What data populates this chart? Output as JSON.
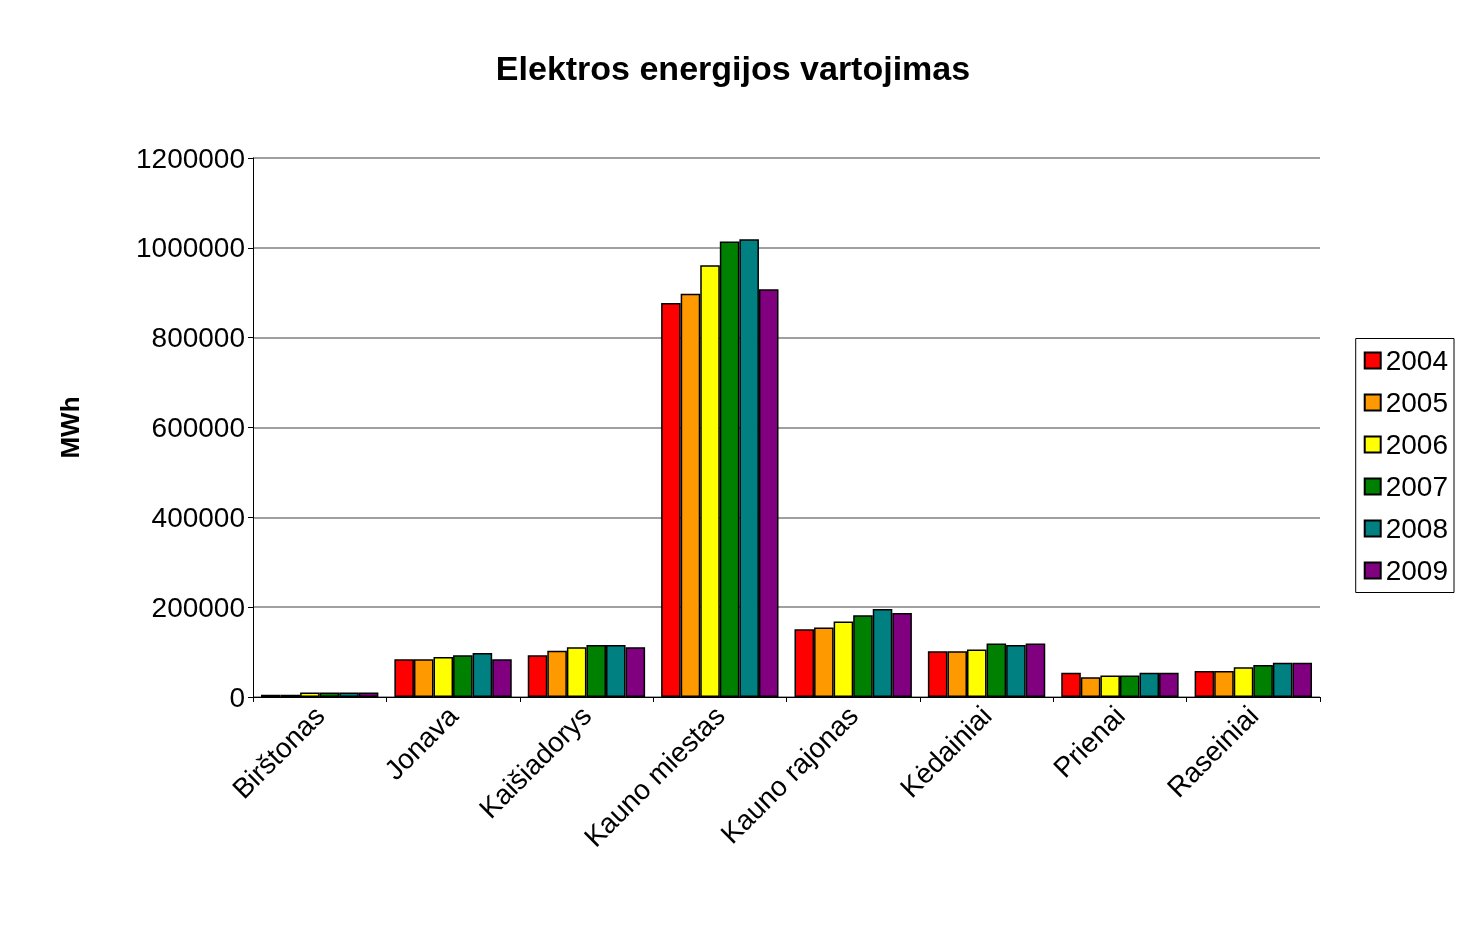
{
  "chart_data": {
    "type": "bar",
    "title": "Elektros energijos vartojimas",
    "ylabel": "MWh",
    "categories": [
      "Birštonas",
      "Jonava",
      "Kaišiadorys",
      "Kauno miestas",
      "Kauno rajonas",
      "Kėdainiai",
      "Prienai",
      "Raseiniai"
    ],
    "series": [
      {
        "name": "2004",
        "color": "#ff0000",
        "values": [
          5000,
          84000,
          93000,
          877000,
          151000,
          102000,
          54000,
          58000
        ]
      },
      {
        "name": "2005",
        "color": "#ff9900",
        "values": [
          5000,
          84000,
          103000,
          898000,
          155000,
          102000,
          44000,
          58000
        ]
      },
      {
        "name": "2006",
        "color": "#ffff00",
        "values": [
          10000,
          89000,
          111000,
          961000,
          168000,
          106000,
          48000,
          66000
        ]
      },
      {
        "name": "2007",
        "color": "#008000",
        "values": [
          10000,
          93000,
          116000,
          1014000,
          182000,
          119000,
          48000,
          71000
        ]
      },
      {
        "name": "2008",
        "color": "#008080",
        "values": [
          10000,
          98000,
          116000,
          1019000,
          196000,
          116000,
          54000,
          76000
        ]
      },
      {
        "name": "2009",
        "color": "#800080",
        "values": [
          10000,
          84000,
          111000,
          908000,
          187000,
          119000,
          54000,
          76000
        ]
      }
    ],
    "ylim": [
      0,
      1200000
    ],
    "yticks": [
      0,
      200000,
      400000,
      600000,
      800000,
      1000000,
      1200000
    ],
    "grid": "y",
    "legend": "right"
  }
}
